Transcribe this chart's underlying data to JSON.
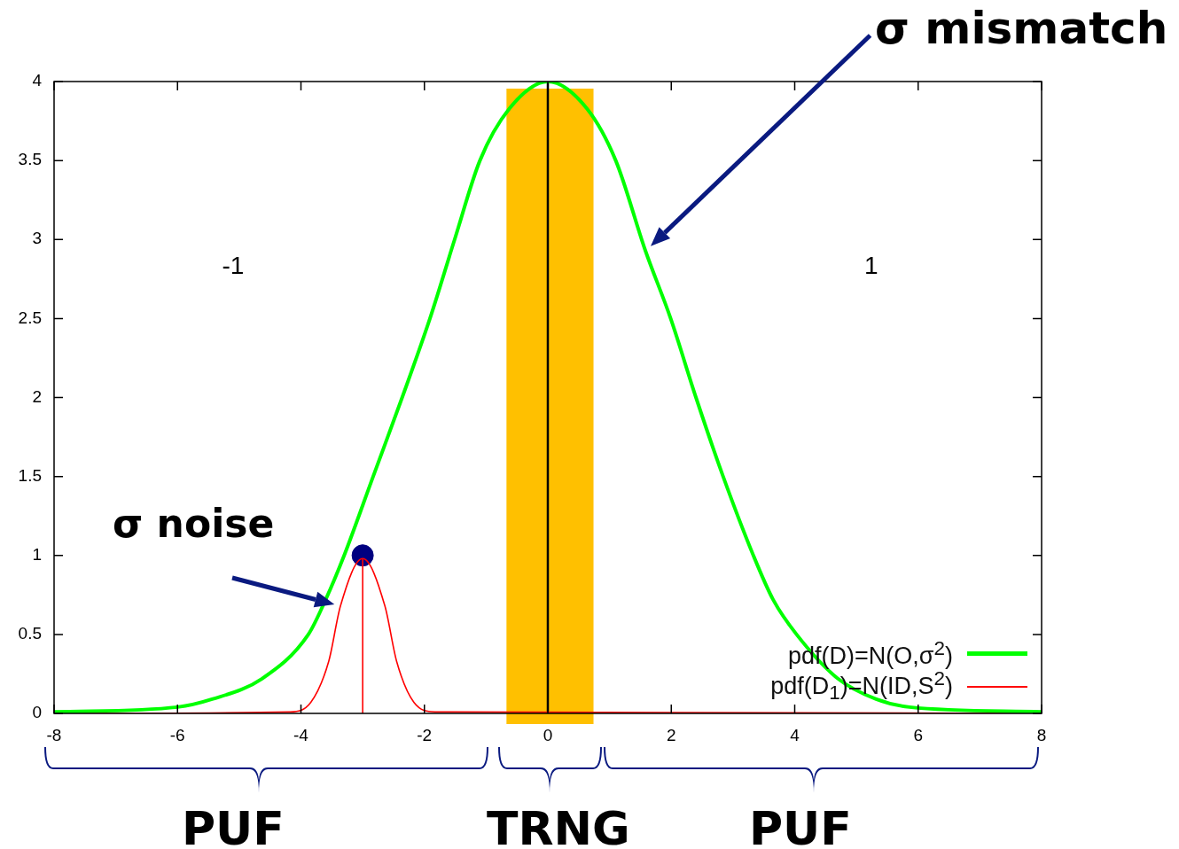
{
  "chart_data": {
    "type": "line",
    "series": [
      {
        "name": "pdf(D)=N(O,σ$^{2}$)",
        "color": "#00ff00",
        "x": [
          -8,
          -6,
          -5.44,
          -4.63,
          -3.88,
          -3.6,
          -3.3,
          -2.83,
          -2.36,
          -1.91,
          -1.51,
          -1.1,
          -0.62,
          0,
          0.63,
          1.1,
          1.58,
          1.99,
          2.4,
          2.84,
          3.33,
          3.65,
          4.03,
          4.7,
          5.32,
          5.86,
          8
        ],
        "values": [
          0.01,
          0.04,
          0.09,
          0.22,
          0.5,
          0.72,
          1.0,
          1.5,
          2.0,
          2.5,
          3.0,
          3.5,
          3.83,
          4,
          3.83,
          3.5,
          2.93,
          2.5,
          2.0,
          1.5,
          1.0,
          0.72,
          0.5,
          0.22,
          0.09,
          0.04,
          0.01
        ]
      },
      {
        "name": "pdf(D$_{1}$)=N(ID,S$^{2}$)",
        "color": "#ff0000",
        "x": [
          -8,
          -4.18,
          -3.84,
          -3.55,
          -3.36,
          -3,
          -2.64,
          -2.45,
          -2.17,
          -1.83,
          8
        ],
        "values": [
          0,
          0.01,
          0.07,
          0.33,
          0.68,
          0.98,
          0.68,
          0.33,
          0.07,
          0.01,
          0
        ]
      },
      {
        "type": "line",
        "color": "#ff0000",
        "x": [
          -3,
          -3
        ],
        "values": [
          0,
          0.98
        ]
      },
      {
        "type": "scatter",
        "color": "#000080",
        "x": [
          -3
        ],
        "values": [
          1
        ]
      }
    ],
    "xlim": [
      -8,
      8
    ],
    "xticks": [
      -8,
      -6,
      -4,
      -2,
      0,
      2,
      4,
      6,
      8
    ],
    "ylim": [
      0,
      4
    ],
    "yticks": [
      0,
      0.5,
      1,
      1.5,
      2,
      2.5,
      3,
      3.5,
      4
    ],
    "ref_lines": [
      {
        "axis": "x",
        "value": 0,
        "color": "#000000"
      }
    ],
    "bands": [
      {
        "axis": "x",
        "from": -0.67,
        "to": 0.74,
        "color": "#ffc000"
      }
    ],
    "legend": "bottom right",
    "annotations": [
      "σ mismatch",
      "-1",
      "1",
      {
        "text": "σ noise",
        "x": -3.36,
        "y": 0.68
      },
      "PUF",
      "TRNG",
      "PUF"
    ]
  }
}
